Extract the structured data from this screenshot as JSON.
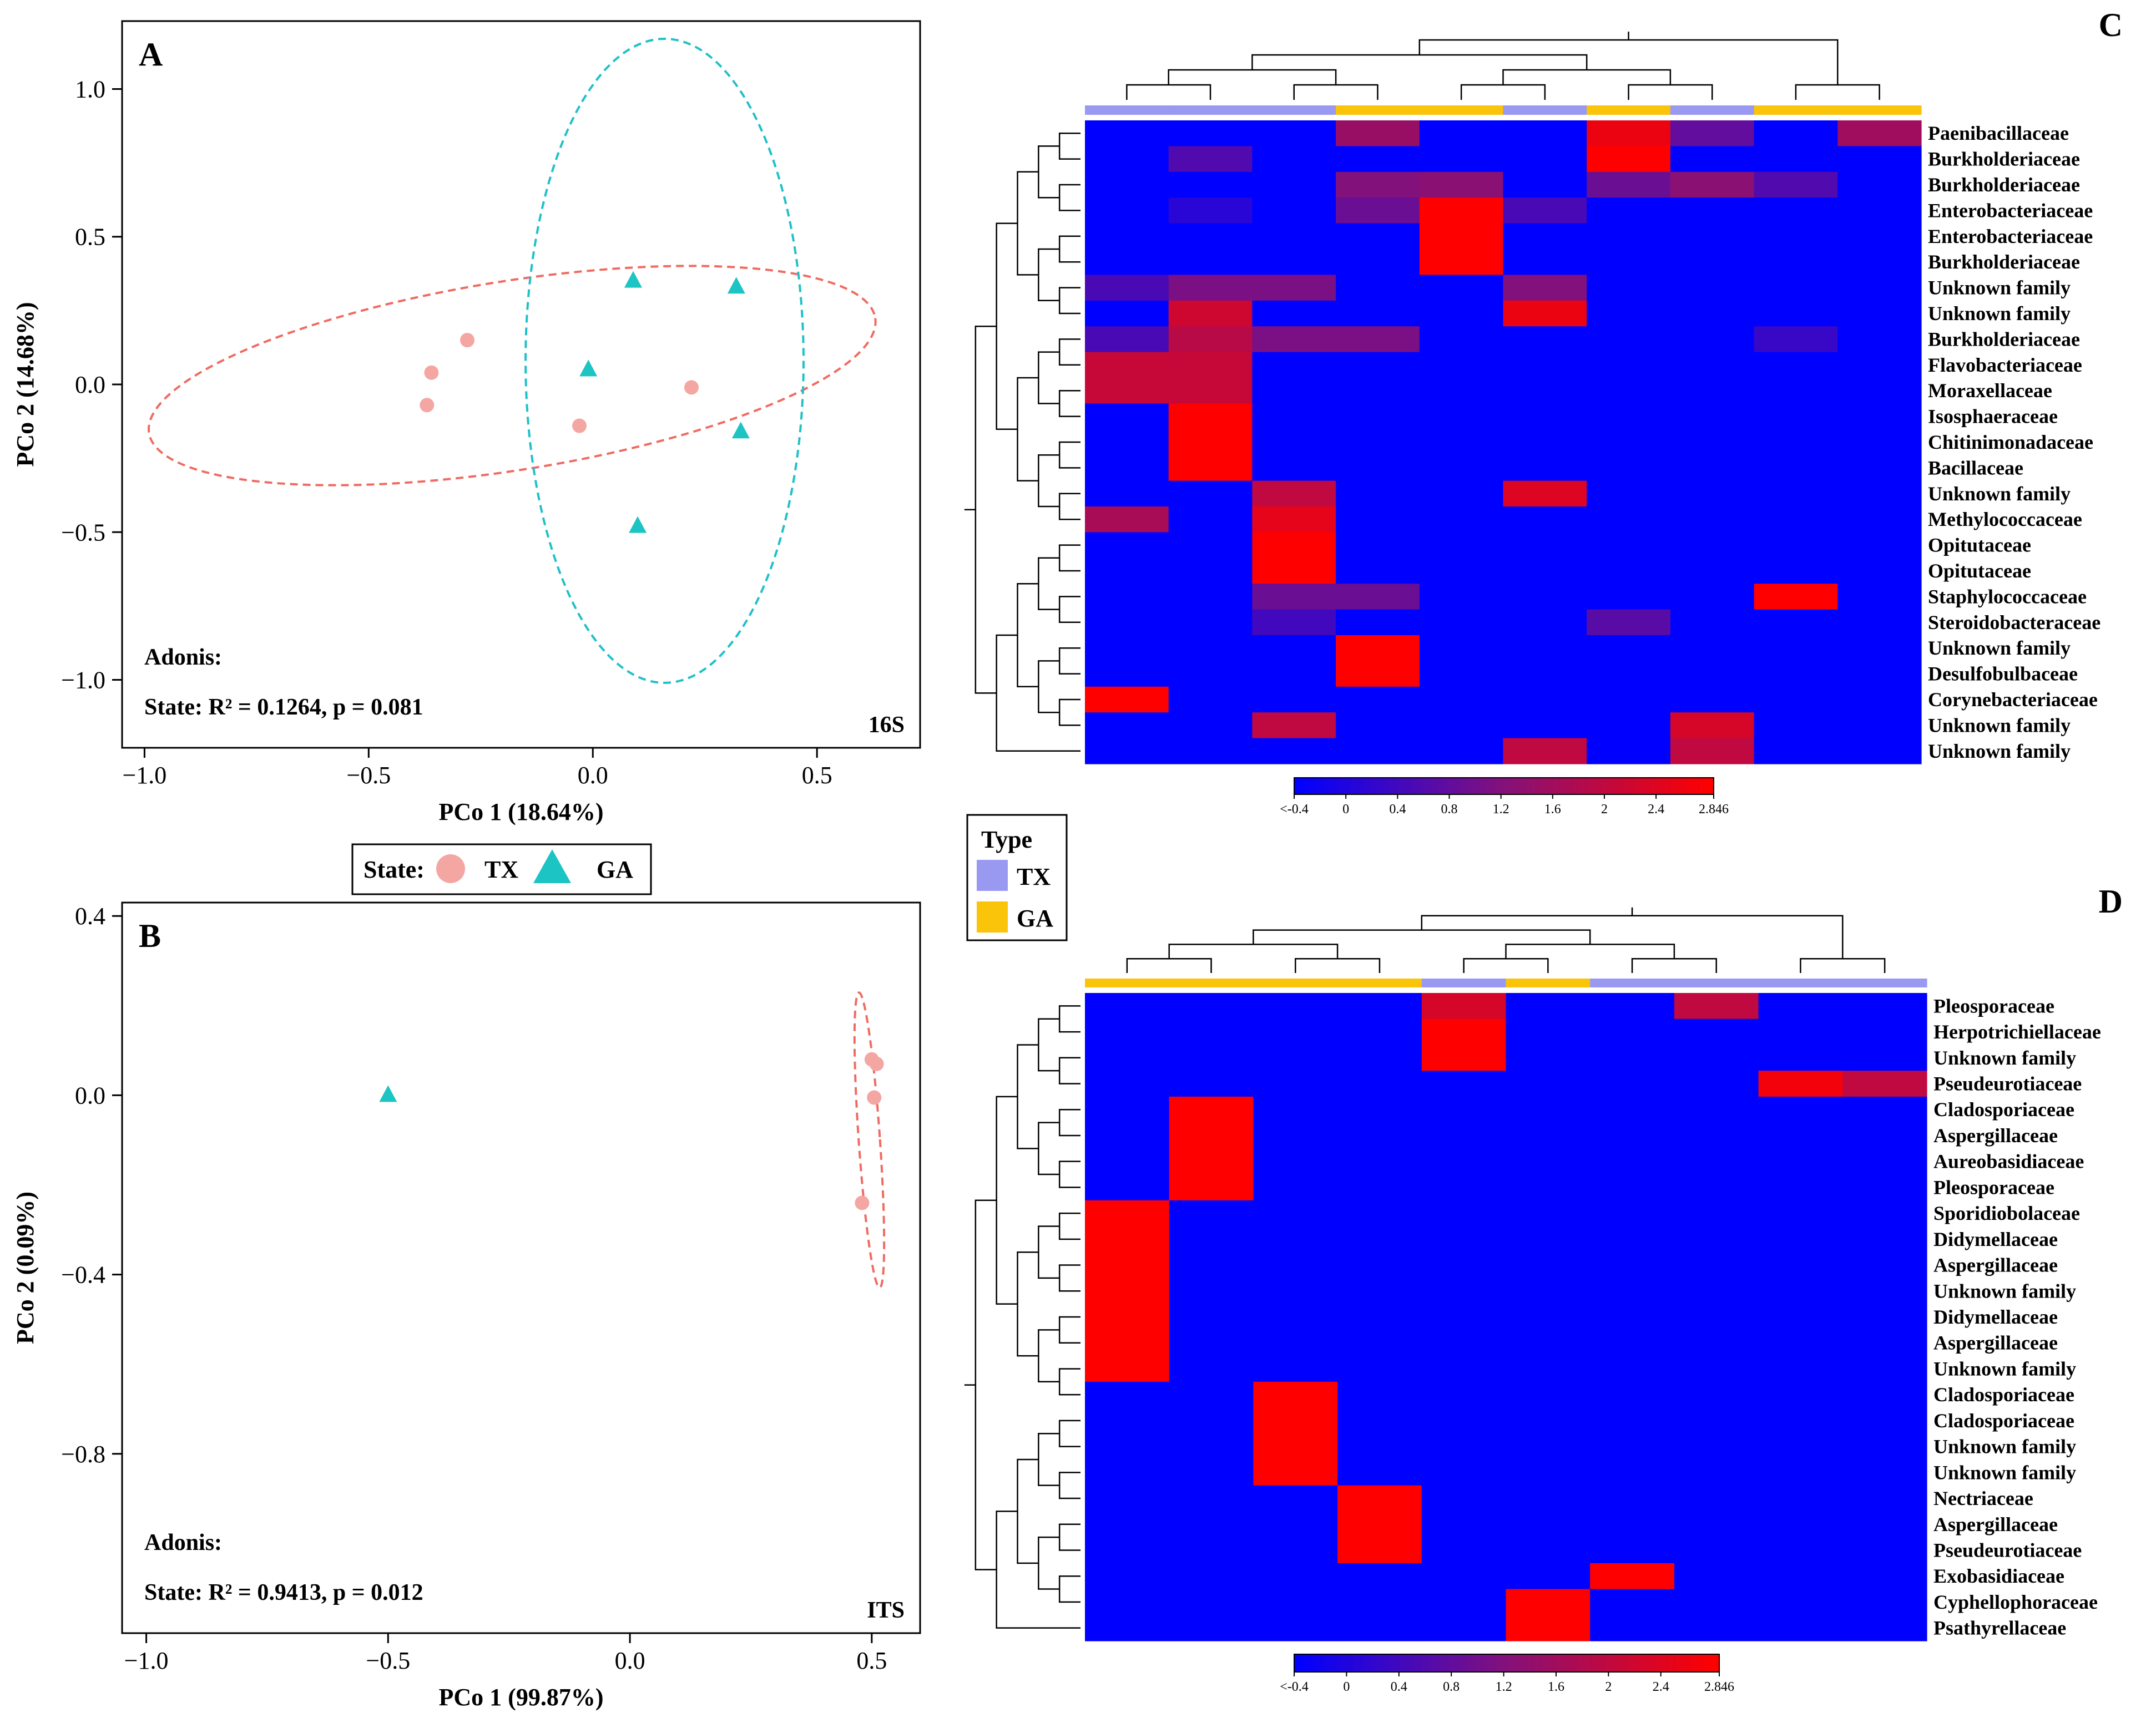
{
  "colors": {
    "tx": "#f4a6a3",
    "ga": "#1cc4c4",
    "tx_ellipse": "#ef6b62",
    "ga_ellipse": "#1fc0c8",
    "tx_bar": "#9999f2",
    "ga_bar": "#f9c40a",
    "low": "#0000ff",
    "mid": "#84117a",
    "high": "#ff0000"
  },
  "legend": {
    "state_label": "State:",
    "tx": "TX",
    "ga": "GA",
    "type_title": "Type"
  },
  "colorbar": {
    "tick_labels": [
      "<-0.4",
      "0",
      "0.4",
      "0.8",
      "1.2",
      "1.6",
      "2",
      "2.4",
      "2.846"
    ],
    "min": -0.4,
    "max": 2.846
  },
  "chart_data": [
    {
      "type": "scatter",
      "panel": "A",
      "title": "A",
      "tag": "16S",
      "xlabel": "PCo 1 (18.64%)",
      "ylabel": "PCo 2 (14.68%)",
      "xlim": [
        -1.05,
        0.73
      ],
      "ylim": [
        -1.23,
        1.23
      ],
      "xticks": [
        -1.0,
        -0.5,
        0.0,
        0.5
      ],
      "xtick_labels": [
        "−1.0",
        "−0.5",
        "0.0",
        "0.5"
      ],
      "yticks": [
        -1.0,
        -0.5,
        0.0,
        0.5,
        1.0
      ],
      "ytick_labels": [
        "−1.0",
        "−0.5",
        "0.0",
        "0.5",
        "1.0"
      ],
      "series": [
        {
          "name": "TX",
          "marker": "circle",
          "points": [
            [
              -0.36,
              0.04
            ],
            [
              -0.37,
              -0.07
            ],
            [
              -0.28,
              0.15
            ],
            [
              0.22,
              -0.01
            ],
            [
              -0.03,
              -0.14
            ]
          ]
        },
        {
          "name": "GA",
          "marker": "triangle",
          "points": [
            [
              0.09,
              0.35
            ],
            [
              0.32,
              0.33
            ],
            [
              -0.01,
              0.05
            ],
            [
              0.33,
              -0.16
            ],
            [
              0.1,
              -0.48
            ]
          ]
        }
      ],
      "ellipses": [
        {
          "group": "TX",
          "center": [
            -0.18,
            0.03
          ],
          "semi_axes": [
            0.82,
            0.32
          ],
          "angle_deg": -9
        },
        {
          "group": "GA",
          "center": [
            0.16,
            0.08
          ],
          "semi_axes": [
            0.31,
            1.09
          ],
          "angle_deg": 0
        }
      ],
      "annotation": [
        "Adonis:",
        "State: R² = 0.1264, p = 0.081"
      ]
    },
    {
      "type": "scatter",
      "panel": "B",
      "title": "B",
      "tag": "ITS",
      "xlabel": "PCo 1 (99.87%)",
      "ylabel": "PCo 2 (0.09%)",
      "xlim": [
        -1.05,
        0.6
      ],
      "ylim": [
        -1.2,
        0.43
      ],
      "xticks": [
        -1.0,
        -0.5,
        0.0,
        0.5
      ],
      "xtick_labels": [
        "−1.0",
        "−0.5",
        "0.0",
        "0.5"
      ],
      "yticks": [
        -0.8,
        -0.4,
        0.0,
        0.4
      ],
      "ytick_labels": [
        "−0.8",
        "−0.4",
        "0.0",
        "0.4"
      ],
      "series": [
        {
          "name": "TX",
          "marker": "circle",
          "points": [
            [
              0.5,
              0.08
            ],
            [
              0.51,
              0.07
            ],
            [
              0.505,
              -0.005
            ],
            [
              0.48,
              -0.24
            ]
          ]
        },
        {
          "name": "GA",
          "marker": "triangle",
          "points": [
            [
              -0.5,
              0.0
            ]
          ]
        }
      ],
      "ellipses": [
        {
          "group": "TX",
          "center": [
            0.495,
            -0.1
          ],
          "semi_axes": [
            0.022,
            0.33
          ],
          "angle_deg": -4
        }
      ],
      "annotation": [
        "Adonis:",
        "State: R² = 0.9413, p = 0.012"
      ]
    },
    {
      "type": "heatmap",
      "panel": "C",
      "title": "C",
      "col_groups": [
        "TX",
        "TX",
        "TX",
        "GA",
        "GA",
        "TX",
        "GA",
        "TX",
        "GA",
        "GA"
      ],
      "rows": [
        "Paenibacillaceae",
        "Burkholderiaceae",
        "Burkholderiaceae",
        "Enterobacteriaceae",
        "Enterobacteriaceae",
        "Burkholderiaceae",
        "Unknown family",
        "Unknown family",
        "Burkholderiaceae",
        "Flavobacteriaceae",
        "Moraxellaceae",
        "Isosphaeraceae",
        "Chitinimonadaceae",
        "Bacillaceae",
        "Unknown family",
        "Methylococcaceae",
        "Opitutaceae",
        "Opitutaceae",
        "Staphylococcaceae",
        "Steroidobacteraceae",
        "Unknown family",
        "Desulfobulbaceae",
        "Corynebacteriaceae",
        "Unknown family",
        "Unknown family"
      ],
      "values": [
        [
          -0.4,
          -0.4,
          -0.4,
          1.5,
          -0.4,
          -0.4,
          2.6,
          0.8,
          -0.4,
          1.6
        ],
        [
          -0.4,
          0.6,
          -0.4,
          -0.4,
          -0.4,
          -0.4,
          2.846,
          -0.4,
          -0.4,
          -0.4
        ],
        [
          -0.4,
          -0.4,
          -0.4,
          1.2,
          1.3,
          -0.4,
          0.9,
          1.3,
          0.6,
          -0.4
        ],
        [
          -0.4,
          0.1,
          -0.4,
          0.9,
          2.846,
          0.5,
          -0.4,
          -0.4,
          -0.4,
          -0.4
        ],
        [
          -0.4,
          -0.4,
          -0.4,
          -0.4,
          2.846,
          -0.4,
          -0.4,
          -0.4,
          -0.4,
          -0.4
        ],
        [
          -0.4,
          -0.4,
          -0.4,
          -0.4,
          2.846,
          -0.4,
          -0.4,
          -0.4,
          -0.4,
          -0.4
        ],
        [
          0.5,
          1.1,
          1.1,
          -0.4,
          -0.4,
          1.2,
          -0.4,
          -0.4,
          -0.4,
          -0.4
        ],
        [
          -0.4,
          2.2,
          -0.4,
          -0.4,
          -0.4,
          2.6,
          -0.4,
          -0.4,
          -0.4,
          -0.4
        ],
        [
          0.5,
          1.9,
          1.1,
          1.1,
          -0.4,
          -0.4,
          -0.4,
          -0.4,
          0.3,
          -0.4
        ],
        [
          2.1,
          2.1,
          -0.4,
          -0.4,
          -0.4,
          -0.4,
          -0.4,
          -0.4,
          -0.4,
          -0.4
        ],
        [
          2.1,
          2.1,
          -0.4,
          -0.4,
          -0.4,
          -0.4,
          -0.4,
          -0.4,
          -0.4,
          -0.4
        ],
        [
          -0.4,
          2.846,
          -0.4,
          -0.4,
          -0.4,
          -0.4,
          -0.4,
          -0.4,
          -0.4,
          -0.4
        ],
        [
          -0.4,
          2.846,
          -0.4,
          -0.4,
          -0.4,
          -0.4,
          -0.4,
          -0.4,
          -0.4,
          -0.4
        ],
        [
          -0.4,
          2.846,
          -0.4,
          -0.4,
          -0.4,
          -0.4,
          -0.4,
          -0.4,
          -0.4,
          -0.4
        ],
        [
          -0.4,
          -0.4,
          2.0,
          -0.4,
          -0.4,
          2.4,
          -0.4,
          -0.4,
          -0.4,
          -0.4
        ],
        [
          1.7,
          -0.4,
          2.5,
          -0.4,
          -0.4,
          -0.4,
          -0.4,
          -0.4,
          -0.4,
          -0.4
        ],
        [
          -0.4,
          -0.4,
          2.846,
          -0.4,
          -0.4,
          -0.4,
          -0.4,
          -0.4,
          -0.4,
          -0.4
        ],
        [
          -0.4,
          -0.4,
          2.846,
          -0.4,
          -0.4,
          -0.4,
          -0.4,
          -0.4,
          -0.4,
          -0.4
        ],
        [
          -0.4,
          -0.4,
          0.9,
          0.9,
          -0.4,
          -0.4,
          -0.4,
          -0.4,
          2.846,
          -0.4
        ],
        [
          -0.4,
          -0.4,
          0.4,
          -0.4,
          -0.4,
          -0.4,
          0.7,
          -0.4,
          -0.4,
          -0.4
        ],
        [
          -0.4,
          -0.4,
          -0.4,
          2.846,
          -0.4,
          -0.4,
          -0.4,
          -0.4,
          -0.4,
          -0.4
        ],
        [
          -0.4,
          -0.4,
          -0.4,
          2.846,
          -0.4,
          -0.4,
          -0.4,
          -0.4,
          -0.4,
          -0.4
        ],
        [
          2.846,
          -0.4,
          -0.4,
          -0.4,
          -0.4,
          -0.4,
          -0.4,
          -0.4,
          -0.4,
          -0.4
        ],
        [
          -0.4,
          -0.4,
          2.0,
          -0.4,
          -0.4,
          -0.4,
          -0.4,
          2.3,
          -0.4,
          -0.4
        ],
        [
          -0.4,
          -0.4,
          -0.4,
          -0.4,
          -0.4,
          2.0,
          -0.4,
          2.0,
          -0.4,
          -0.4
        ]
      ]
    },
    {
      "type": "heatmap",
      "panel": "D",
      "title": "D",
      "col_groups": [
        "GA",
        "GA",
        "GA",
        "GA",
        "TX",
        "GA",
        "TX",
        "TX",
        "TX",
        "TX"
      ],
      "rows": [
        "Pleosporaceae",
        "Herpotrichiellaceae",
        "Unknown family",
        "Pseudeurotiaceae",
        "Cladosporiaceae",
        "Aspergillaceae",
        "Aureobasidiaceae",
        "Pleosporaceae",
        "Sporidiobolaceae",
        "Didymellaceae",
        "Aspergillaceae",
        "Unknown family",
        "Didymellaceae",
        "Aspergillaceae",
        "Unknown family",
        "Cladosporiaceae",
        "Cladosporiaceae",
        "Unknown family",
        "Unknown family",
        "Nectriaceae",
        "Aspergillaceae",
        "Pseudeurotiaceae",
        "Exobasidiaceae",
        "Cyphellophoraceae",
        "Psathyrellaceae"
      ],
      "values": [
        [
          -0.4,
          -0.4,
          -0.4,
          -0.4,
          2.3,
          -0.4,
          -0.4,
          2.0,
          -0.4,
          -0.4
        ],
        [
          -0.4,
          -0.4,
          -0.4,
          -0.4,
          2.846,
          -0.4,
          -0.4,
          -0.4,
          -0.4,
          -0.4
        ],
        [
          -0.4,
          -0.4,
          -0.4,
          -0.4,
          2.846,
          -0.4,
          -0.4,
          -0.4,
          -0.4,
          -0.4
        ],
        [
          -0.4,
          -0.4,
          -0.4,
          -0.4,
          -0.4,
          -0.4,
          -0.4,
          -0.4,
          2.7,
          2.0
        ],
        [
          -0.4,
          2.846,
          -0.4,
          -0.4,
          -0.4,
          -0.4,
          -0.4,
          -0.4,
          -0.4,
          -0.4
        ],
        [
          -0.4,
          2.846,
          -0.4,
          -0.4,
          -0.4,
          -0.4,
          -0.4,
          -0.4,
          -0.4,
          -0.4
        ],
        [
          -0.4,
          2.846,
          -0.4,
          -0.4,
          -0.4,
          -0.4,
          -0.4,
          -0.4,
          -0.4,
          -0.4
        ],
        [
          -0.4,
          2.846,
          -0.4,
          -0.4,
          -0.4,
          -0.4,
          -0.4,
          -0.4,
          -0.4,
          -0.4
        ],
        [
          2.846,
          -0.4,
          -0.4,
          -0.4,
          -0.4,
          -0.4,
          -0.4,
          -0.4,
          -0.4,
          -0.4
        ],
        [
          2.846,
          -0.4,
          -0.4,
          -0.4,
          -0.4,
          -0.4,
          -0.4,
          -0.4,
          -0.4,
          -0.4
        ],
        [
          2.846,
          -0.4,
          -0.4,
          -0.4,
          -0.4,
          -0.4,
          -0.4,
          -0.4,
          -0.4,
          -0.4
        ],
        [
          2.846,
          -0.4,
          -0.4,
          -0.4,
          -0.4,
          -0.4,
          -0.4,
          -0.4,
          -0.4,
          -0.4
        ],
        [
          2.846,
          -0.4,
          -0.4,
          -0.4,
          -0.4,
          -0.4,
          -0.4,
          -0.4,
          -0.4,
          -0.4
        ],
        [
          2.846,
          -0.4,
          -0.4,
          -0.4,
          -0.4,
          -0.4,
          -0.4,
          -0.4,
          -0.4,
          -0.4
        ],
        [
          2.846,
          -0.4,
          -0.4,
          -0.4,
          -0.4,
          -0.4,
          -0.4,
          -0.4,
          -0.4,
          -0.4
        ],
        [
          -0.4,
          -0.4,
          2.846,
          -0.4,
          -0.4,
          -0.4,
          -0.4,
          -0.4,
          -0.4,
          -0.4
        ],
        [
          -0.4,
          -0.4,
          2.846,
          -0.4,
          -0.4,
          -0.4,
          -0.4,
          -0.4,
          -0.4,
          -0.4
        ],
        [
          -0.4,
          -0.4,
          2.846,
          -0.4,
          -0.4,
          -0.4,
          -0.4,
          -0.4,
          -0.4,
          -0.4
        ],
        [
          -0.4,
          -0.4,
          2.846,
          -0.4,
          -0.4,
          -0.4,
          -0.4,
          -0.4,
          -0.4,
          -0.4
        ],
        [
          -0.4,
          -0.4,
          -0.4,
          2.846,
          -0.4,
          -0.4,
          -0.4,
          -0.4,
          -0.4,
          -0.4
        ],
        [
          -0.4,
          -0.4,
          -0.4,
          2.846,
          -0.4,
          -0.4,
          -0.4,
          -0.4,
          -0.4,
          -0.4
        ],
        [
          -0.4,
          -0.4,
          -0.4,
          2.846,
          -0.4,
          -0.4,
          -0.4,
          -0.4,
          -0.4,
          -0.4
        ],
        [
          -0.4,
          -0.4,
          -0.4,
          -0.4,
          -0.4,
          -0.4,
          2.846,
          -0.4,
          -0.4,
          -0.4
        ],
        [
          -0.4,
          -0.4,
          -0.4,
          -0.4,
          -0.4,
          2.846,
          -0.4,
          -0.4,
          -0.4,
          -0.4
        ],
        [
          -0.4,
          -0.4,
          -0.4,
          -0.4,
          -0.4,
          2.846,
          -0.4,
          -0.4,
          -0.4,
          -0.4
        ]
      ]
    }
  ]
}
